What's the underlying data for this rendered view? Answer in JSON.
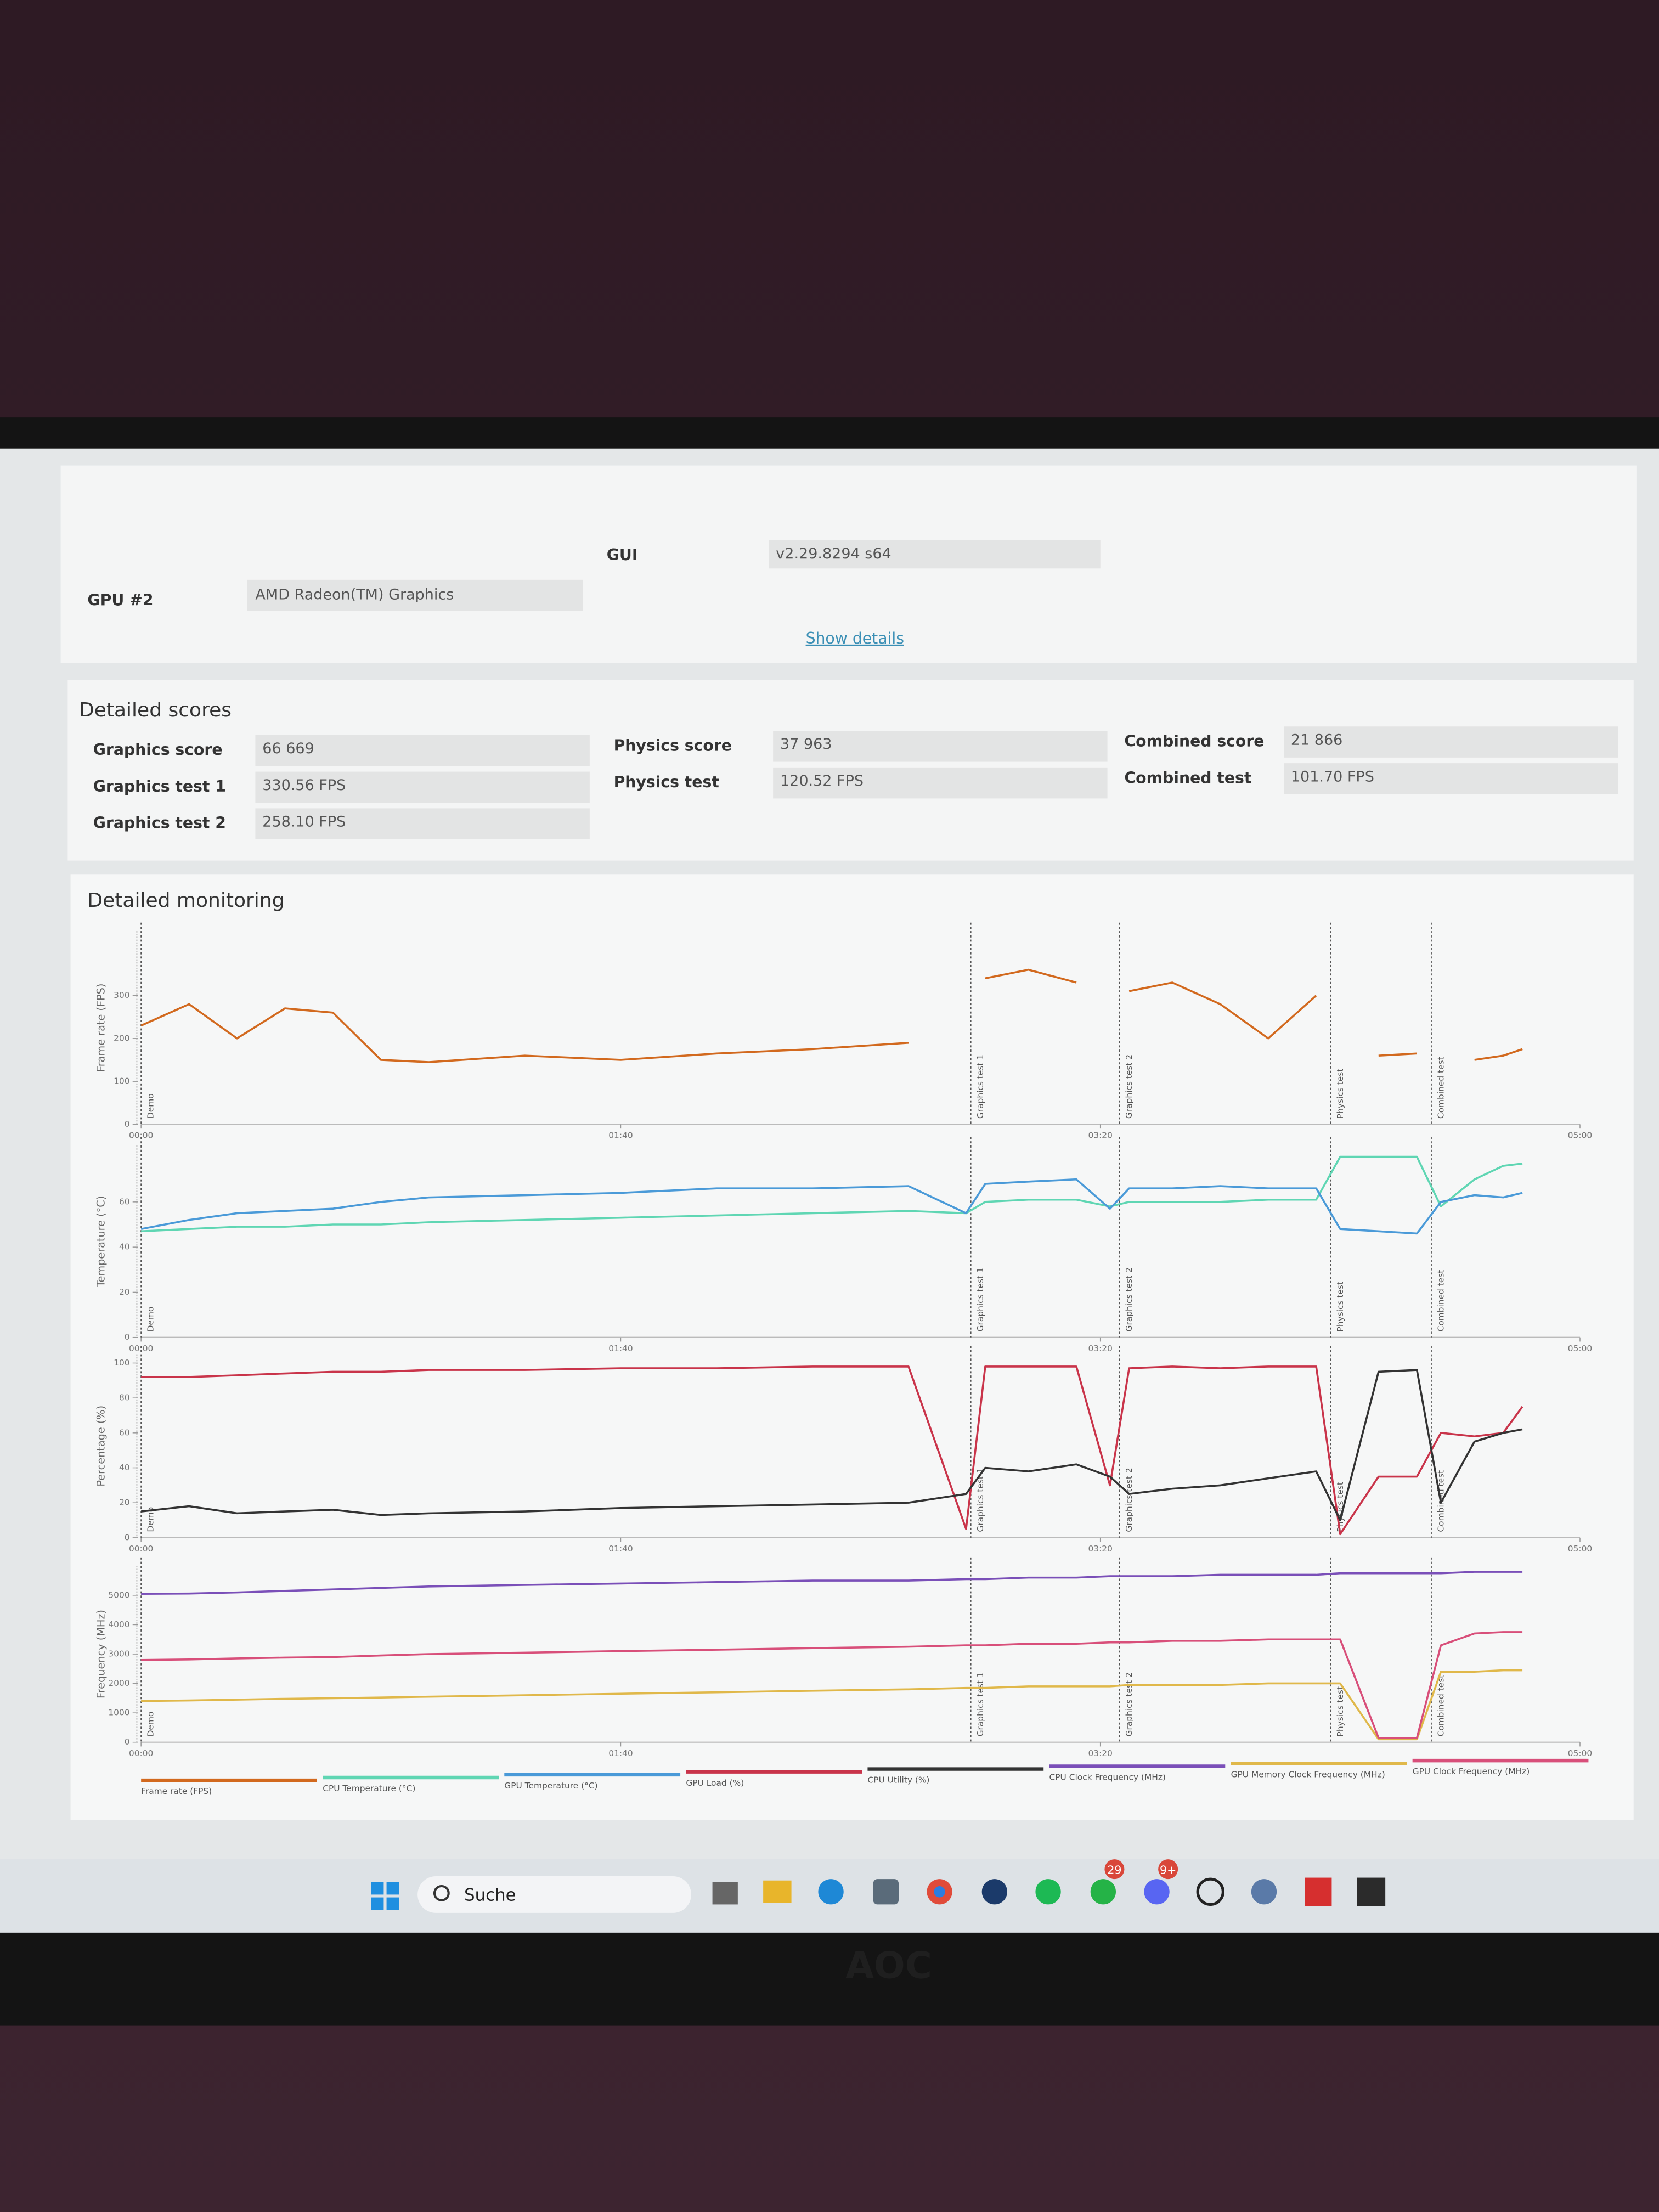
{
  "system_info": {
    "rows": [
      [
        "GUI",
        "v2.29.8294 s64"
      ],
      [
        "GPU #2",
        "AMD Radeon(TM) Graphics"
      ]
    ],
    "show_details": "Show details"
  },
  "detailed_scores": {
    "title": "Detailed scores",
    "columns": [
      [
        [
          "Graphics score",
          "66 669"
        ],
        [
          "Graphics test 1",
          "330.56 FPS"
        ],
        [
          "Graphics test 2",
          "258.10 FPS"
        ]
      ],
      [
        [
          "Physics score",
          "37 963"
        ],
        [
          "Physics test",
          "120.52 FPS"
        ]
      ],
      [
        [
          "Combined score",
          "21 866"
        ],
        [
          "Combined test",
          "101.70 FPS"
        ]
      ]
    ]
  },
  "detailed_monitoring": {
    "title": "Detailed monitoring"
  },
  "chart_data": [
    {
      "type": "line",
      "ylabel": "Frame rate (FPS)",
      "x": [
        0,
        10,
        20,
        30,
        40,
        50,
        60,
        80,
        100,
        120,
        140,
        160,
        172,
        176,
        185,
        195,
        202,
        206,
        215,
        225,
        235,
        245,
        250,
        258,
        266,
        271,
        278,
        284,
        288
      ],
      "xlim": [
        0,
        300
      ],
      "xticks": [
        {
          "value": 0,
          "label": "00:00"
        },
        {
          "value": 100,
          "label": "01:40"
        },
        {
          "value": 200,
          "label": "03:20"
        },
        {
          "value": 300,
          "label": "05:00"
        }
      ],
      "ylim": [
        0,
        450
      ],
      "yticks": [
        0,
        100,
        200,
        300
      ],
      "sections": [
        {
          "name": "Demo",
          "start": 0
        },
        {
          "name": "Graphics test 1",
          "start": 173
        },
        {
          "name": "Graphics test 2",
          "start": 204
        },
        {
          "name": "Physics test",
          "start": 248
        },
        {
          "name": "Combined test",
          "start": 269
        }
      ],
      "series": [
        {
          "name": "Frame rate (FPS)",
          "color": "#d2691e",
          "values": [
            230,
            280,
            200,
            270,
            260,
            150,
            145,
            160,
            150,
            165,
            175,
            190,
            null,
            340,
            360,
            330,
            null,
            310,
            330,
            280,
            200,
            300,
            null,
            160,
            165,
            null,
            150,
            160,
            175
          ]
        }
      ]
    },
    {
      "type": "line",
      "ylabel": "Temperature (°C)",
      "x": [
        0,
        10,
        20,
        30,
        40,
        50,
        60,
        80,
        100,
        120,
        140,
        160,
        172,
        176,
        185,
        195,
        202,
        206,
        215,
        225,
        235,
        245,
        250,
        258,
        266,
        271,
        278,
        284,
        288
      ],
      "xlim": [
        0,
        300
      ],
      "xticks": [
        {
          "value": 0,
          "label": "00:00"
        },
        {
          "value": 100,
          "label": "01:40"
        },
        {
          "value": 200,
          "label": "03:20"
        },
        {
          "value": 300,
          "label": "05:00"
        }
      ],
      "ylim": [
        0,
        85
      ],
      "yticks": [
        0,
        20,
        40,
        60
      ],
      "sections": [
        {
          "name": "Demo",
          "start": 0
        },
        {
          "name": "Graphics test 1",
          "start": 173
        },
        {
          "name": "Graphics test 2",
          "start": 204
        },
        {
          "name": "Physics test",
          "start": 248
        },
        {
          "name": "Combined test",
          "start": 269
        }
      ],
      "series": [
        {
          "name": "CPU Temperature (°C)",
          "color": "#5fd6b3",
          "values": [
            47,
            48,
            49,
            49,
            50,
            50,
            51,
            52,
            53,
            54,
            55,
            56,
            55,
            60,
            61,
            61,
            58,
            60,
            60,
            60,
            61,
            61,
            80,
            80,
            80,
            58,
            70,
            76,
            77
          ]
        },
        {
          "name": "GPU Temperature (°C)",
          "color": "#4a9ad8",
          "values": [
            48,
            52,
            55,
            56,
            57,
            60,
            62,
            63,
            64,
            66,
            66,
            67,
            55,
            68,
            69,
            70,
            57,
            66,
            66,
            67,
            66,
            66,
            48,
            47,
            46,
            60,
            63,
            62,
            64
          ]
        }
      ]
    },
    {
      "type": "line",
      "ylabel": "Percentage (%)",
      "x": [
        0,
        10,
        20,
        30,
        40,
        50,
        60,
        80,
        100,
        120,
        140,
        160,
        172,
        176,
        185,
        195,
        202,
        206,
        215,
        225,
        235,
        245,
        250,
        258,
        266,
        271,
        278,
        284,
        288
      ],
      "xlim": [
        0,
        300
      ],
      "xticks": [
        {
          "value": 0,
          "label": "00:00"
        },
        {
          "value": 100,
          "label": "01:40"
        },
        {
          "value": 200,
          "label": "03:20"
        },
        {
          "value": 300,
          "label": "05:00"
        }
      ],
      "ylim": [
        0,
        105
      ],
      "yticks": [
        0,
        20,
        40,
        60,
        80,
        100
      ],
      "sections": [
        {
          "name": "Demo",
          "start": 0
        },
        {
          "name": "Graphics test 1",
          "start": 173
        },
        {
          "name": "Graphics test 2",
          "start": 204
        },
        {
          "name": "Physics test",
          "start": 248
        },
        {
          "name": "Combined test",
          "start": 269
        }
      ],
      "series": [
        {
          "name": "GPU Load (%)",
          "color": "#c9344a",
          "values": [
            92,
            92,
            93,
            94,
            95,
            95,
            96,
            96,
            97,
            97,
            98,
            98,
            5,
            98,
            98,
            98,
            30,
            97,
            98,
            97,
            98,
            98,
            2,
            35,
            35,
            60,
            58,
            60,
            75
          ]
        },
        {
          "name": "CPU Utility (%)",
          "color": "#333333",
          "values": [
            15,
            18,
            14,
            15,
            16,
            13,
            14,
            15,
            17,
            18,
            19,
            20,
            25,
            40,
            38,
            42,
            35,
            25,
            28,
            30,
            34,
            38,
            10,
            95,
            96,
            20,
            55,
            60,
            62
          ]
        }
      ]
    },
    {
      "type": "line",
      "ylabel": "Frequency (MHz)",
      "x": [
        0,
        10,
        20,
        30,
        40,
        50,
        60,
        80,
        100,
        120,
        140,
        160,
        172,
        176,
        185,
        195,
        202,
        206,
        215,
        225,
        235,
        245,
        250,
        258,
        266,
        271,
        278,
        284,
        288
      ],
      "xlim": [
        0,
        300
      ],
      "xticks": [
        {
          "value": 0,
          "label": "00:00"
        },
        {
          "value": 100,
          "label": "01:40"
        },
        {
          "value": 200,
          "label": "03:20"
        },
        {
          "value": 300,
          "label": "05:00"
        }
      ],
      "ylim": [
        0,
        6000
      ],
      "yticks": [
        0,
        1000,
        2000,
        3000,
        4000,
        5000
      ],
      "sections": [
        {
          "name": "Demo",
          "start": 0
        },
        {
          "name": "Graphics test 1",
          "start": 173
        },
        {
          "name": "Graphics test 2",
          "start": 204
        },
        {
          "name": "Physics test",
          "start": 248
        },
        {
          "name": "Combined test",
          "start": 269
        }
      ],
      "series": [
        {
          "name": "CPU Clock Frequency (MHz)",
          "color": "#7a4fb8",
          "values": [
            5050,
            5060,
            5100,
            5150,
            5200,
            5250,
            5300,
            5350,
            5400,
            5450,
            5500,
            5500,
            5550,
            5550,
            5600,
            5600,
            5650,
            5650,
            5650,
            5700,
            5700,
            5700,
            5750,
            5750,
            5750,
            5750,
            5800,
            5800,
            5800
          ]
        },
        {
          "name": "GPU Memory Clock Frequency (MHz)",
          "color": "#e0b84a",
          "values": [
            1400,
            1420,
            1450,
            1480,
            1500,
            1520,
            1550,
            1600,
            1650,
            1700,
            1750,
            1800,
            1850,
            1850,
            1900,
            1900,
            1900,
            1950,
            1950,
            1950,
            2000,
            2000,
            2000,
            100,
            100,
            2400,
            2400,
            2450,
            2450
          ]
        },
        {
          "name": "GPU Clock Frequency (MHz)",
          "color": "#d84f7a",
          "values": [
            2800,
            2820,
            2850,
            2880,
            2900,
            2950,
            3000,
            3050,
            3100,
            3150,
            3200,
            3250,
            3300,
            3300,
            3350,
            3350,
            3400,
            3400,
            3450,
            3450,
            3500,
            3500,
            3500,
            150,
            150,
            3300,
            3700,
            3750,
            3750
          ]
        }
      ]
    }
  ],
  "taskbar": {
    "search": "Suche",
    "badges": [
      "29",
      "9+"
    ]
  }
}
